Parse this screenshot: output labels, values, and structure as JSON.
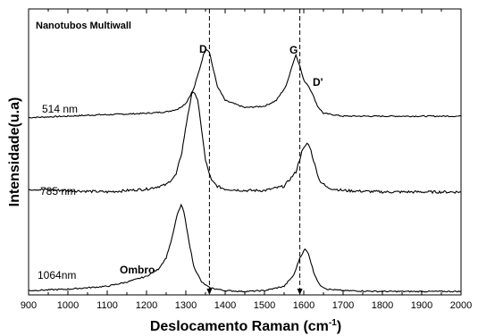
{
  "chart_data": {
    "type": "line",
    "title": "Nanotubos Multiwall",
    "xlabel": "Deslocamento Raman (cm",
    "xlabel_sup": "-1",
    "xlabel_close": ")",
    "ylabel": "Intensidade(u.a)",
    "xlim": [
      900,
      2000
    ],
    "ylim": [
      0,
      10
    ],
    "x_ticks": [
      900,
      1000,
      1100,
      1200,
      1300,
      1400,
      1500,
      1600,
      1700,
      1800,
      1900,
      2000
    ],
    "y_ticks_labeled": false,
    "series": [
      {
        "name": "514 nm",
        "x": [
          900,
          1000,
          1080,
          1100,
          1200,
          1250,
          1280,
          1300,
          1320,
          1335,
          1345,
          1352,
          1360,
          1368,
          1380,
          1400,
          1450,
          1500,
          1530,
          1555,
          1570,
          1580,
          1590,
          1600,
          1610,
          1620,
          1635,
          1650,
          1700,
          1800,
          1900,
          2000
        ],
        "y": [
          6.2,
          6.25,
          6.3,
          6.3,
          6.35,
          6.4,
          6.5,
          6.7,
          7.2,
          7.9,
          8.4,
          8.6,
          8.5,
          8.0,
          7.3,
          6.8,
          6.55,
          6.6,
          6.8,
          7.3,
          8.0,
          8.4,
          8.0,
          7.5,
          7.35,
          7.1,
          6.6,
          6.35,
          6.25,
          6.25,
          6.25,
          6.25
        ]
      },
      {
        "name": "785 nm",
        "x": [
          900,
          1000,
          1100,
          1200,
          1250,
          1275,
          1290,
          1305,
          1315,
          1322,
          1330,
          1340,
          1350,
          1365,
          1380,
          1400,
          1450,
          1500,
          1550,
          1580,
          1595,
          1608,
          1615,
          1625,
          1640,
          1660,
          1700,
          1800,
          1900,
          2000
        ],
        "y": [
          3.7,
          3.65,
          3.6,
          3.7,
          3.85,
          4.2,
          5.0,
          6.3,
          7.0,
          7.1,
          6.8,
          5.8,
          4.7,
          4.0,
          3.8,
          3.7,
          3.65,
          3.65,
          3.8,
          4.3,
          5.0,
          5.3,
          5.2,
          4.7,
          4.0,
          3.75,
          3.65,
          3.6,
          3.6,
          3.6
        ]
      },
      {
        "name": "1064nm",
        "x": [
          900,
          1000,
          1100,
          1150,
          1200,
          1230,
          1250,
          1265,
          1278,
          1288,
          1295,
          1305,
          1320,
          1340,
          1360,
          1400,
          1450,
          1500,
          1550,
          1575,
          1590,
          1603,
          1612,
          1625,
          1640,
          1660,
          1700,
          1800,
          1900,
          2000
        ],
        "y": [
          0.15,
          0.2,
          0.3,
          0.45,
          0.65,
          0.9,
          1.3,
          2.0,
          2.8,
          3.15,
          2.9,
          2.1,
          1.0,
          0.45,
          0.25,
          0.15,
          0.12,
          0.15,
          0.3,
          0.7,
          1.3,
          1.6,
          1.45,
          0.8,
          0.35,
          0.2,
          0.15,
          0.12,
          0.12,
          0.12
        ]
      }
    ],
    "reference_lines": [
      1360,
      1590
    ],
    "annotations": {
      "d": "D",
      "g": "G",
      "d_prime": "D'",
      "ombro": "Ombro"
    },
    "grid": false
  }
}
